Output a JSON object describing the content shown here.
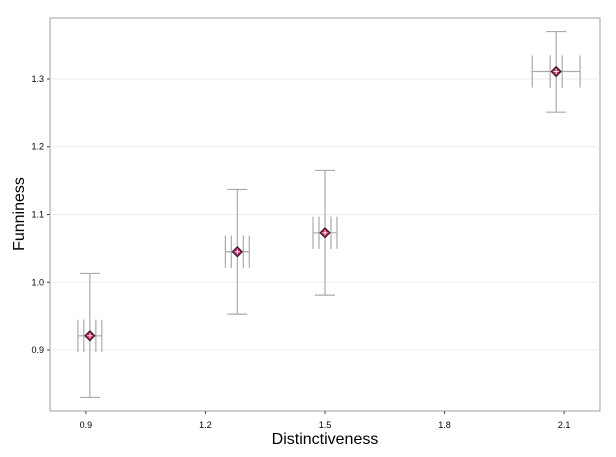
{
  "chart_data": {
    "type": "scatter",
    "title": "",
    "xlabel": "Distinctiveness",
    "ylabel": "Funniness",
    "xlim": [
      0.81,
      2.19
    ],
    "ylim": [
      0.81,
      1.39
    ],
    "x_ticks": [
      0.9,
      1.2,
      1.5,
      1.8,
      2.1
    ],
    "x_tick_labels": [
      "0.9",
      "1.2",
      "1.5",
      "1.8",
      "2.1"
    ],
    "y_ticks": [
      0.9,
      1.0,
      1.1,
      1.2,
      1.3
    ],
    "y_tick_labels": [
      "0.9",
      "1.0",
      "1.1",
      "1.2",
      "1.3"
    ],
    "grid": true,
    "legend": "none",
    "point_fill_color": "#c2185b",
    "point_outline_color": "#222222",
    "errorbar_color": "#aaaaaa",
    "points": [
      {
        "x": 0.91,
        "y": 0.921,
        "y_ci": [
          0.83,
          1.013
        ],
        "y_se": [
          0.897,
          0.945
        ],
        "x_se": [
          0.88,
          0.94
        ]
      },
      {
        "x": 1.28,
        "y": 1.045,
        "y_ci": [
          0.953,
          1.137
        ],
        "y_se": [
          1.021,
          1.069
        ],
        "x_se": [
          1.25,
          1.31
        ]
      },
      {
        "x": 1.5,
        "y": 1.073,
        "y_ci": [
          0.981,
          1.165
        ],
        "y_se": [
          1.049,
          1.097
        ],
        "x_se": [
          1.47,
          1.53
        ]
      },
      {
        "x": 2.08,
        "y": 1.311,
        "y_ci": [
          1.251,
          1.37
        ],
        "y_se": [
          1.287,
          1.335
        ],
        "x_se": [
          2.02,
          2.14
        ]
      }
    ]
  }
}
